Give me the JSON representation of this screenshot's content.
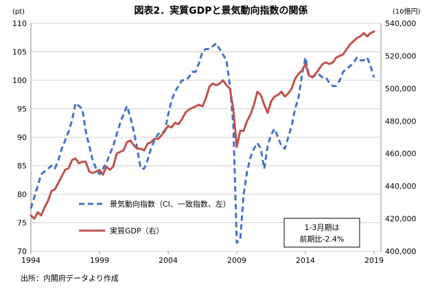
{
  "chart_data": {
    "type": "line",
    "title": "図表2．実質GDPと景気動向指数の関係",
    "left_unit": "(pt)",
    "right_unit": "(10億円)",
    "x_ticks": [
      "1994",
      "1999",
      "2004",
      "2009",
      "2014",
      "2019"
    ],
    "x_range": [
      1994,
      2019.5
    ],
    "y_left": {
      "min": 70,
      "max": 110,
      "step": 5,
      "ticks": [
        "70",
        "75",
        "80",
        "85",
        "90",
        "95",
        "100",
        "105",
        "110"
      ]
    },
    "y_right": {
      "min": 400000,
      "max": 540000,
      "step": 20000,
      "ticks": [
        "400,000",
        "420,000",
        "440,000",
        "460,000",
        "480,000",
        "500,000",
        "520,000",
        "540,000"
      ]
    },
    "series": [
      {
        "name": "景気動向指数（CI、一致指数、左）",
        "axis": "left",
        "color": "#4472C4",
        "dash": true,
        "points": [
          [
            1994.0,
            77.5
          ],
          [
            1994.25,
            79.5
          ],
          [
            1994.5,
            81.5
          ],
          [
            1994.75,
            83.5
          ],
          [
            1995.0,
            84.0
          ],
          [
            1995.25,
            84.5
          ],
          [
            1995.5,
            85.0
          ],
          [
            1995.75,
            84.5
          ],
          [
            1996.0,
            86.0
          ],
          [
            1996.25,
            88.0
          ],
          [
            1996.5,
            89.5
          ],
          [
            1996.75,
            91.0
          ],
          [
            1997.0,
            93.0
          ],
          [
            1997.25,
            96.0
          ],
          [
            1997.5,
            95.5
          ],
          [
            1997.75,
            95.0
          ],
          [
            1998.0,
            91.0
          ],
          [
            1998.25,
            88.5
          ],
          [
            1998.5,
            86.0
          ],
          [
            1998.75,
            84.5
          ],
          [
            1999.0,
            83.5
          ],
          [
            1999.25,
            84.5
          ],
          [
            1999.5,
            85.5
          ],
          [
            1999.75,
            87.0
          ],
          [
            2000.0,
            88.5
          ],
          [
            2000.25,
            90.5
          ],
          [
            2000.5,
            92.5
          ],
          [
            2000.75,
            94.0
          ],
          [
            2001.0,
            95.5
          ],
          [
            2001.25,
            93.5
          ],
          [
            2001.5,
            91.0
          ],
          [
            2001.75,
            88.0
          ],
          [
            2002.0,
            84.5
          ],
          [
            2002.25,
            84.5
          ],
          [
            2002.5,
            86.0
          ],
          [
            2002.75,
            88.0
          ],
          [
            2003.0,
            89.5
          ],
          [
            2003.25,
            90.5
          ],
          [
            2003.5,
            91.0
          ],
          [
            2003.75,
            91.0
          ],
          [
            2004.0,
            94.0
          ],
          [
            2004.25,
            96.5
          ],
          [
            2004.5,
            98.0
          ],
          [
            2004.75,
            99.0
          ],
          [
            2005.0,
            100.0
          ],
          [
            2005.25,
            100.0
          ],
          [
            2005.5,
            100.5
          ],
          [
            2005.75,
            101.5
          ],
          [
            2006.0,
            101.5
          ],
          [
            2006.25,
            103.0
          ],
          [
            2006.5,
            105.0
          ],
          [
            2006.75,
            105.5
          ],
          [
            2007.0,
            105.5
          ],
          [
            2007.25,
            106.0
          ],
          [
            2007.5,
            106.5
          ],
          [
            2007.75,
            105.5
          ],
          [
            2008.0,
            104.5
          ],
          [
            2008.25,
            103.5
          ],
          [
            2008.5,
            99.0
          ],
          [
            2008.75,
            92.0
          ],
          [
            2009.0,
            71.5
          ],
          [
            2009.25,
            72.0
          ],
          [
            2009.5,
            80.0
          ],
          [
            2009.75,
            84.0
          ],
          [
            2010.0,
            86.5
          ],
          [
            2010.25,
            88.0
          ],
          [
            2010.5,
            89.0
          ],
          [
            2010.75,
            88.0
          ],
          [
            2011.0,
            84.5
          ],
          [
            2011.25,
            88.5
          ],
          [
            2011.5,
            90.5
          ],
          [
            2011.75,
            91.5
          ],
          [
            2012.0,
            90.0
          ],
          [
            2012.25,
            88.5
          ],
          [
            2012.5,
            88.0
          ],
          [
            2012.75,
            90.0
          ],
          [
            2013.0,
            92.0
          ],
          [
            2013.25,
            95.0
          ],
          [
            2013.5,
            97.0
          ],
          [
            2013.75,
            101.0
          ],
          [
            2014.0,
            104.0
          ],
          [
            2014.25,
            101.0
          ],
          [
            2014.5,
            100.5
          ],
          [
            2014.75,
            101.0
          ],
          [
            2015.0,
            101.0
          ],
          [
            2015.25,
            100.5
          ],
          [
            2015.5,
            100.5
          ],
          [
            2015.75,
            99.5
          ],
          [
            2016.0,
            99.0
          ],
          [
            2016.25,
            99.0
          ],
          [
            2016.5,
            100.0
          ],
          [
            2016.75,
            101.5
          ],
          [
            2017.0,
            102.0
          ],
          [
            2017.25,
            102.5
          ],
          [
            2017.5,
            103.0
          ],
          [
            2017.75,
            104.0
          ],
          [
            2018.0,
            103.5
          ],
          [
            2018.25,
            103.5
          ],
          [
            2018.5,
            104.0
          ],
          [
            2018.75,
            102.5
          ],
          [
            2019.0,
            100.5
          ]
        ]
      },
      {
        "name": "実質GDP（右）",
        "axis": "right",
        "color": "#C0504D",
        "dash": false,
        "points": [
          [
            1994.0,
            422000
          ],
          [
            1994.25,
            420000
          ],
          [
            1994.5,
            424000
          ],
          [
            1994.75,
            422000
          ],
          [
            1995.0,
            427000
          ],
          [
            1995.25,
            431000
          ],
          [
            1995.5,
            437000
          ],
          [
            1995.75,
            438000
          ],
          [
            1996.0,
            442000
          ],
          [
            1996.25,
            446000
          ],
          [
            1996.5,
            450000
          ],
          [
            1996.75,
            451000
          ],
          [
            1997.0,
            456000
          ],
          [
            1997.25,
            457000
          ],
          [
            1997.5,
            454000
          ],
          [
            1997.75,
            455000
          ],
          [
            1998.0,
            455000
          ],
          [
            1998.25,
            449000
          ],
          [
            1998.5,
            448000
          ],
          [
            1998.75,
            449000
          ],
          [
            1999.0,
            450000
          ],
          [
            1999.25,
            447000
          ],
          [
            1999.5,
            452000
          ],
          [
            1999.75,
            450000
          ],
          [
            2000.0,
            452000
          ],
          [
            2000.25,
            460000
          ],
          [
            2000.5,
            461000
          ],
          [
            2000.75,
            462000
          ],
          [
            2001.0,
            467000
          ],
          [
            2001.25,
            468000
          ],
          [
            2001.5,
            465000
          ],
          [
            2001.75,
            463000
          ],
          [
            2002.0,
            463000
          ],
          [
            2002.25,
            462000
          ],
          [
            2002.5,
            466000
          ],
          [
            2002.75,
            467000
          ],
          [
            2003.0,
            469000
          ],
          [
            2003.25,
            469000
          ],
          [
            2003.5,
            471000
          ],
          [
            2003.75,
            474000
          ],
          [
            2004.0,
            477000
          ],
          [
            2004.25,
            476000
          ],
          [
            2004.5,
            479000
          ],
          [
            2004.75,
            478000
          ],
          [
            2005.0,
            481000
          ],
          [
            2005.25,
            485000
          ],
          [
            2005.5,
            487000
          ],
          [
            2005.75,
            488000
          ],
          [
            2006.0,
            489000
          ],
          [
            2006.25,
            490000
          ],
          [
            2006.5,
            489000
          ],
          [
            2006.75,
            494000
          ],
          [
            2007.0,
            501000
          ],
          [
            2007.25,
            503000
          ],
          [
            2007.5,
            502000
          ],
          [
            2007.75,
            503000
          ],
          [
            2008.0,
            505000
          ],
          [
            2008.25,
            502000
          ],
          [
            2008.5,
            500000
          ],
          [
            2008.75,
            487000
          ],
          [
            2009.0,
            464000
          ],
          [
            2009.25,
            474000
          ],
          [
            2009.5,
            474000
          ],
          [
            2009.75,
            480000
          ],
          [
            2010.0,
            484000
          ],
          [
            2010.25,
            490000
          ],
          [
            2010.5,
            498000
          ],
          [
            2010.75,
            496000
          ],
          [
            2011.0,
            490000
          ],
          [
            2011.25,
            485000
          ],
          [
            2011.5,
            492000
          ],
          [
            2011.75,
            495000
          ],
          [
            2012.0,
            496000
          ],
          [
            2012.25,
            498000
          ],
          [
            2012.5,
            495000
          ],
          [
            2012.75,
            497000
          ],
          [
            2013.0,
            500000
          ],
          [
            2013.25,
            506000
          ],
          [
            2013.5,
            509000
          ],
          [
            2013.75,
            511000
          ],
          [
            2014.0,
            515000
          ],
          [
            2014.25,
            508000
          ],
          [
            2014.5,
            507000
          ],
          [
            2014.75,
            509000
          ],
          [
            2015.0,
            512000
          ],
          [
            2015.25,
            515000
          ],
          [
            2015.5,
            516000
          ],
          [
            2015.75,
            515000
          ],
          [
            2016.0,
            516000
          ],
          [
            2016.25,
            519000
          ],
          [
            2016.5,
            520000
          ],
          [
            2016.75,
            521000
          ],
          [
            2017.0,
            524000
          ],
          [
            2017.25,
            527000
          ],
          [
            2017.5,
            529000
          ],
          [
            2017.75,
            531000
          ],
          [
            2018.0,
            532000
          ],
          [
            2018.25,
            534000
          ],
          [
            2018.5,
            532000
          ],
          [
            2018.75,
            534000
          ],
          [
            2019.0,
            535000
          ]
        ]
      }
    ],
    "note": {
      "line1": "1-3月期は",
      "line2": "前期比-2.4%"
    },
    "source": "出所：内閣府データより作成"
  }
}
